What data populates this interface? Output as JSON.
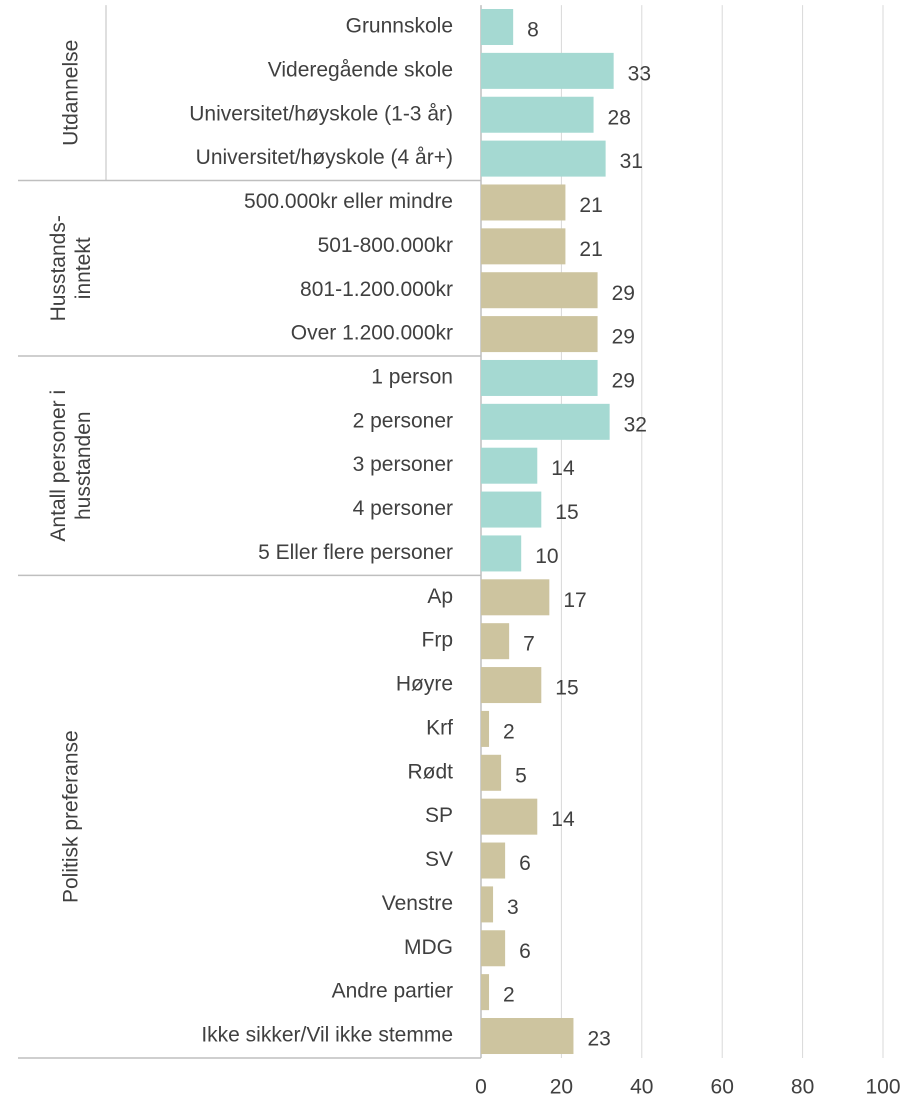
{
  "chart_data": {
    "type": "bar",
    "orientation": "horizontal",
    "groups": [
      {
        "label": [
          "Utdannelse"
        ],
        "color": "#a5d9d2",
        "categories": [
          "Grunnskole",
          "Videregående skole",
          "Universitet/høyskole (1-3 år)",
          "Universitet/høyskole (4 år+)"
        ],
        "values": [
          8,
          33,
          28,
          31
        ]
      },
      {
        "label": [
          "Husstands-",
          "inntekt"
        ],
        "color": "#cdc49f",
        "categories": [
          "500.000kr eller mindre",
          "501-800.000kr",
          "801-1.200.000kr",
          "Over 1.200.000kr"
        ],
        "values": [
          21,
          21,
          29,
          29
        ]
      },
      {
        "label": [
          "Antall personer i",
          "husstanden"
        ],
        "color": "#a5d9d2",
        "categories": [
          "1 person",
          "2 personer",
          "3 personer",
          "4 personer",
          "5 Eller flere personer"
        ],
        "values": [
          29,
          32,
          14,
          15,
          10
        ]
      },
      {
        "label": [
          "Politisk preferanse"
        ],
        "color": "#cdc49f",
        "categories": [
          "Ap",
          "Frp",
          "Høyre",
          "Krf",
          "Rødt",
          "SP",
          "SV",
          "Venstre",
          "MDG",
          "Andre partier",
          "Ikke sikker/Vil ikke stemme"
        ],
        "values": [
          17,
          7,
          15,
          2,
          5,
          14,
          6,
          3,
          6,
          2,
          23
        ]
      }
    ],
    "xlim": [
      0,
      100
    ],
    "xticks": [
      0,
      20,
      40,
      60,
      80,
      100
    ],
    "grid": true
  }
}
